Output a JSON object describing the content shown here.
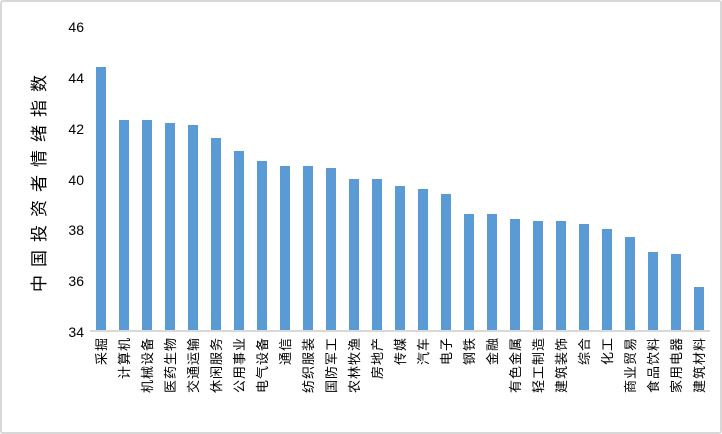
{
  "chart_data": {
    "type": "bar",
    "title": "",
    "xlabel": "",
    "ylabel": "中国投资者情绪指数",
    "ylim": [
      34,
      46
    ],
    "yticks": [
      34,
      36,
      38,
      40,
      42,
      44,
      46
    ],
    "grid": false,
    "legend_position": "none",
    "bar_color": "#5B9BD5",
    "axis_line_color": "#D9D9D9",
    "text_color": "#000000",
    "frame_border_color": "#D8D8D8",
    "background_color": "#FFFFFF",
    "categories": [
      "采掘",
      "计算机",
      "机械设备",
      "医药生物",
      "交通运输",
      "休闲服务",
      "公用事业",
      "电气设备",
      "通信",
      "纺织服装",
      "国防军工",
      "农林牧渔",
      "房地产",
      "传媒",
      "汽车",
      "电子",
      "钢铁",
      "金融",
      "有色金属",
      "轻工制造",
      "建筑装饰",
      "综合",
      "化工",
      "商业贸易",
      "食品饮料",
      "家用电器",
      "建筑材料"
    ],
    "values": [
      44.4,
      42.3,
      42.3,
      42.2,
      42.1,
      41.6,
      41.1,
      40.7,
      40.5,
      40.5,
      40.4,
      40.0,
      40.0,
      39.7,
      39.6,
      39.4,
      38.6,
      38.6,
      38.4,
      38.3,
      38.3,
      38.2,
      38.0,
      37.7,
      37.1,
      37.0,
      35.7
    ]
  }
}
